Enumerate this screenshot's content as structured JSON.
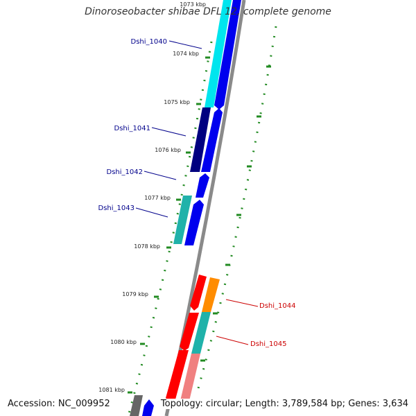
{
  "title": "Dinoroseobacter shibae DFL 12, complete genome",
  "accession": "Accession: NC_009952",
  "topology": "Topology: circular",
  "length": "Length: 3,789,584 bp",
  "genes": "Genes: 3,634",
  "separator": "; ",
  "ticks": [
    "1073 kbp",
    "1074 kbp",
    "1075 kbp",
    "1076 kbp",
    "1077 kbp",
    "1078 kbp",
    "1079 kbp",
    "1080 kbp",
    "1081 kbp"
  ],
  "genes_labeled": [
    "Dshi_1040",
    "Dshi_1041",
    "Dshi_1042",
    "Dshi_1043",
    "Dshi_1044",
    "Dshi_1045"
  ],
  "colors": {
    "backbone": "#888888",
    "tick_mark": "#228b22",
    "label_left": "#00008b",
    "label_right": "#cc0000",
    "cyan": "#00e5ee",
    "teal": "#20b2aa",
    "navy": "#000080",
    "blue": "#0000ee",
    "red": "#ff0000",
    "orange": "#ff8c00",
    "salmon": "#f08080",
    "gray": "#666666"
  }
}
